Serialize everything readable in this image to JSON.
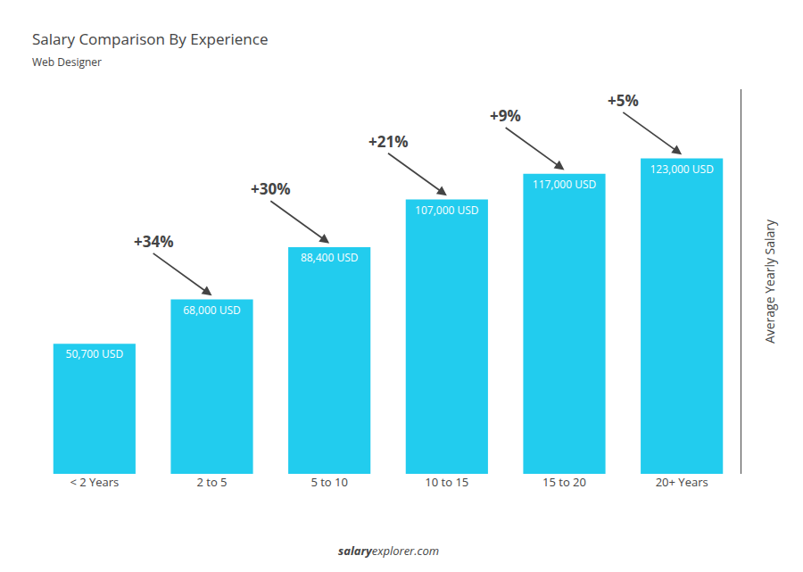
{
  "chart_data": {
    "type": "bar",
    "title": "Salary Comparison By Experience",
    "subtitle": "Web Designer",
    "ylabel": "Average Yearly Salary",
    "categories": [
      "< 2 Years",
      "2 to 5",
      "5 to 10",
      "10 to 15",
      "15 to 20",
      "20+ Years"
    ],
    "values": [
      50700,
      68000,
      88400,
      107000,
      117000,
      123000
    ],
    "value_labels": [
      "50,700 USD",
      "68,000 USD",
      "88,400 USD",
      "107,000 USD",
      "117,000 USD",
      "123,000 USD"
    ],
    "data_labels": true,
    "annotations": [
      "+34%",
      "+30%",
      "+21%",
      "+9%",
      "+5%"
    ],
    "footer": [
      "salary",
      "explorer.com"
    ],
    "color": "#22ccee",
    "ylim": [
      0,
      150000
    ],
    "yticks": [],
    "tick_labels": "x",
    "grid": false
  }
}
